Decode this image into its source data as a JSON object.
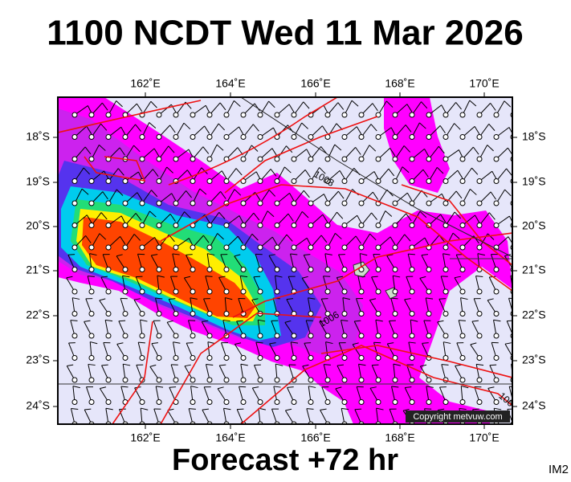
{
  "title": "1100 NCDT Wed 11 Mar 2026",
  "map": {
    "lon_labels": [
      "162˚E",
      "164˚E",
      "166˚E",
      "168˚E",
      "170˚E"
    ],
    "lat_labels": [
      "18˚S",
      "19˚S",
      "20˚S",
      "21˚S",
      "22˚S",
      "23˚S",
      "24˚S"
    ],
    "isobar_labels": [
      "1008",
      "1006",
      "100"
    ],
    "copyright": "Copyright metvuw.com"
  },
  "footer": {
    "forecast": "Forecast +72 hr",
    "code": "IM2"
  }
}
